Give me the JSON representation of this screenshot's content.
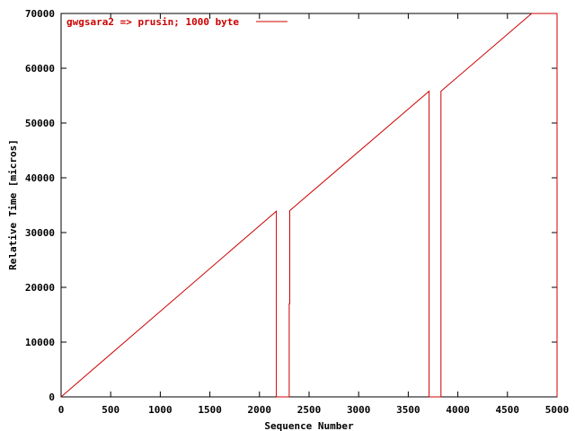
{
  "chart_data": {
    "type": "line",
    "title": "",
    "xlabel": "Sequence Number",
    "ylabel": "Relative Time [micros]",
    "xlim": [
      0,
      5000
    ],
    "ylim": [
      0,
      70000
    ],
    "xticks": [
      "0",
      "500",
      "1000",
      "1500",
      "2000",
      "2500",
      "3000",
      "3500",
      "4000",
      "4500",
      "5000"
    ],
    "yticks": [
      "0",
      "10000",
      "20000",
      "30000",
      "40000",
      "50000",
      "60000",
      "70000"
    ],
    "grid": false,
    "legend_position": "top-left",
    "series": [
      {
        "name": "gwgsara2 => prusin; 1000 byte",
        "color": "#cc0000",
        "x": [
          0,
          2170,
          2170,
          2300,
          2300,
          2305,
          2305,
          3710,
          3710,
          3830,
          3830,
          4745,
          5000,
          5000
        ],
        "y": [
          0,
          33900,
          0,
          0,
          17000,
          17000,
          34000,
          55800,
          0,
          0,
          55800,
          70000,
          70000,
          0
        ]
      }
    ]
  }
}
